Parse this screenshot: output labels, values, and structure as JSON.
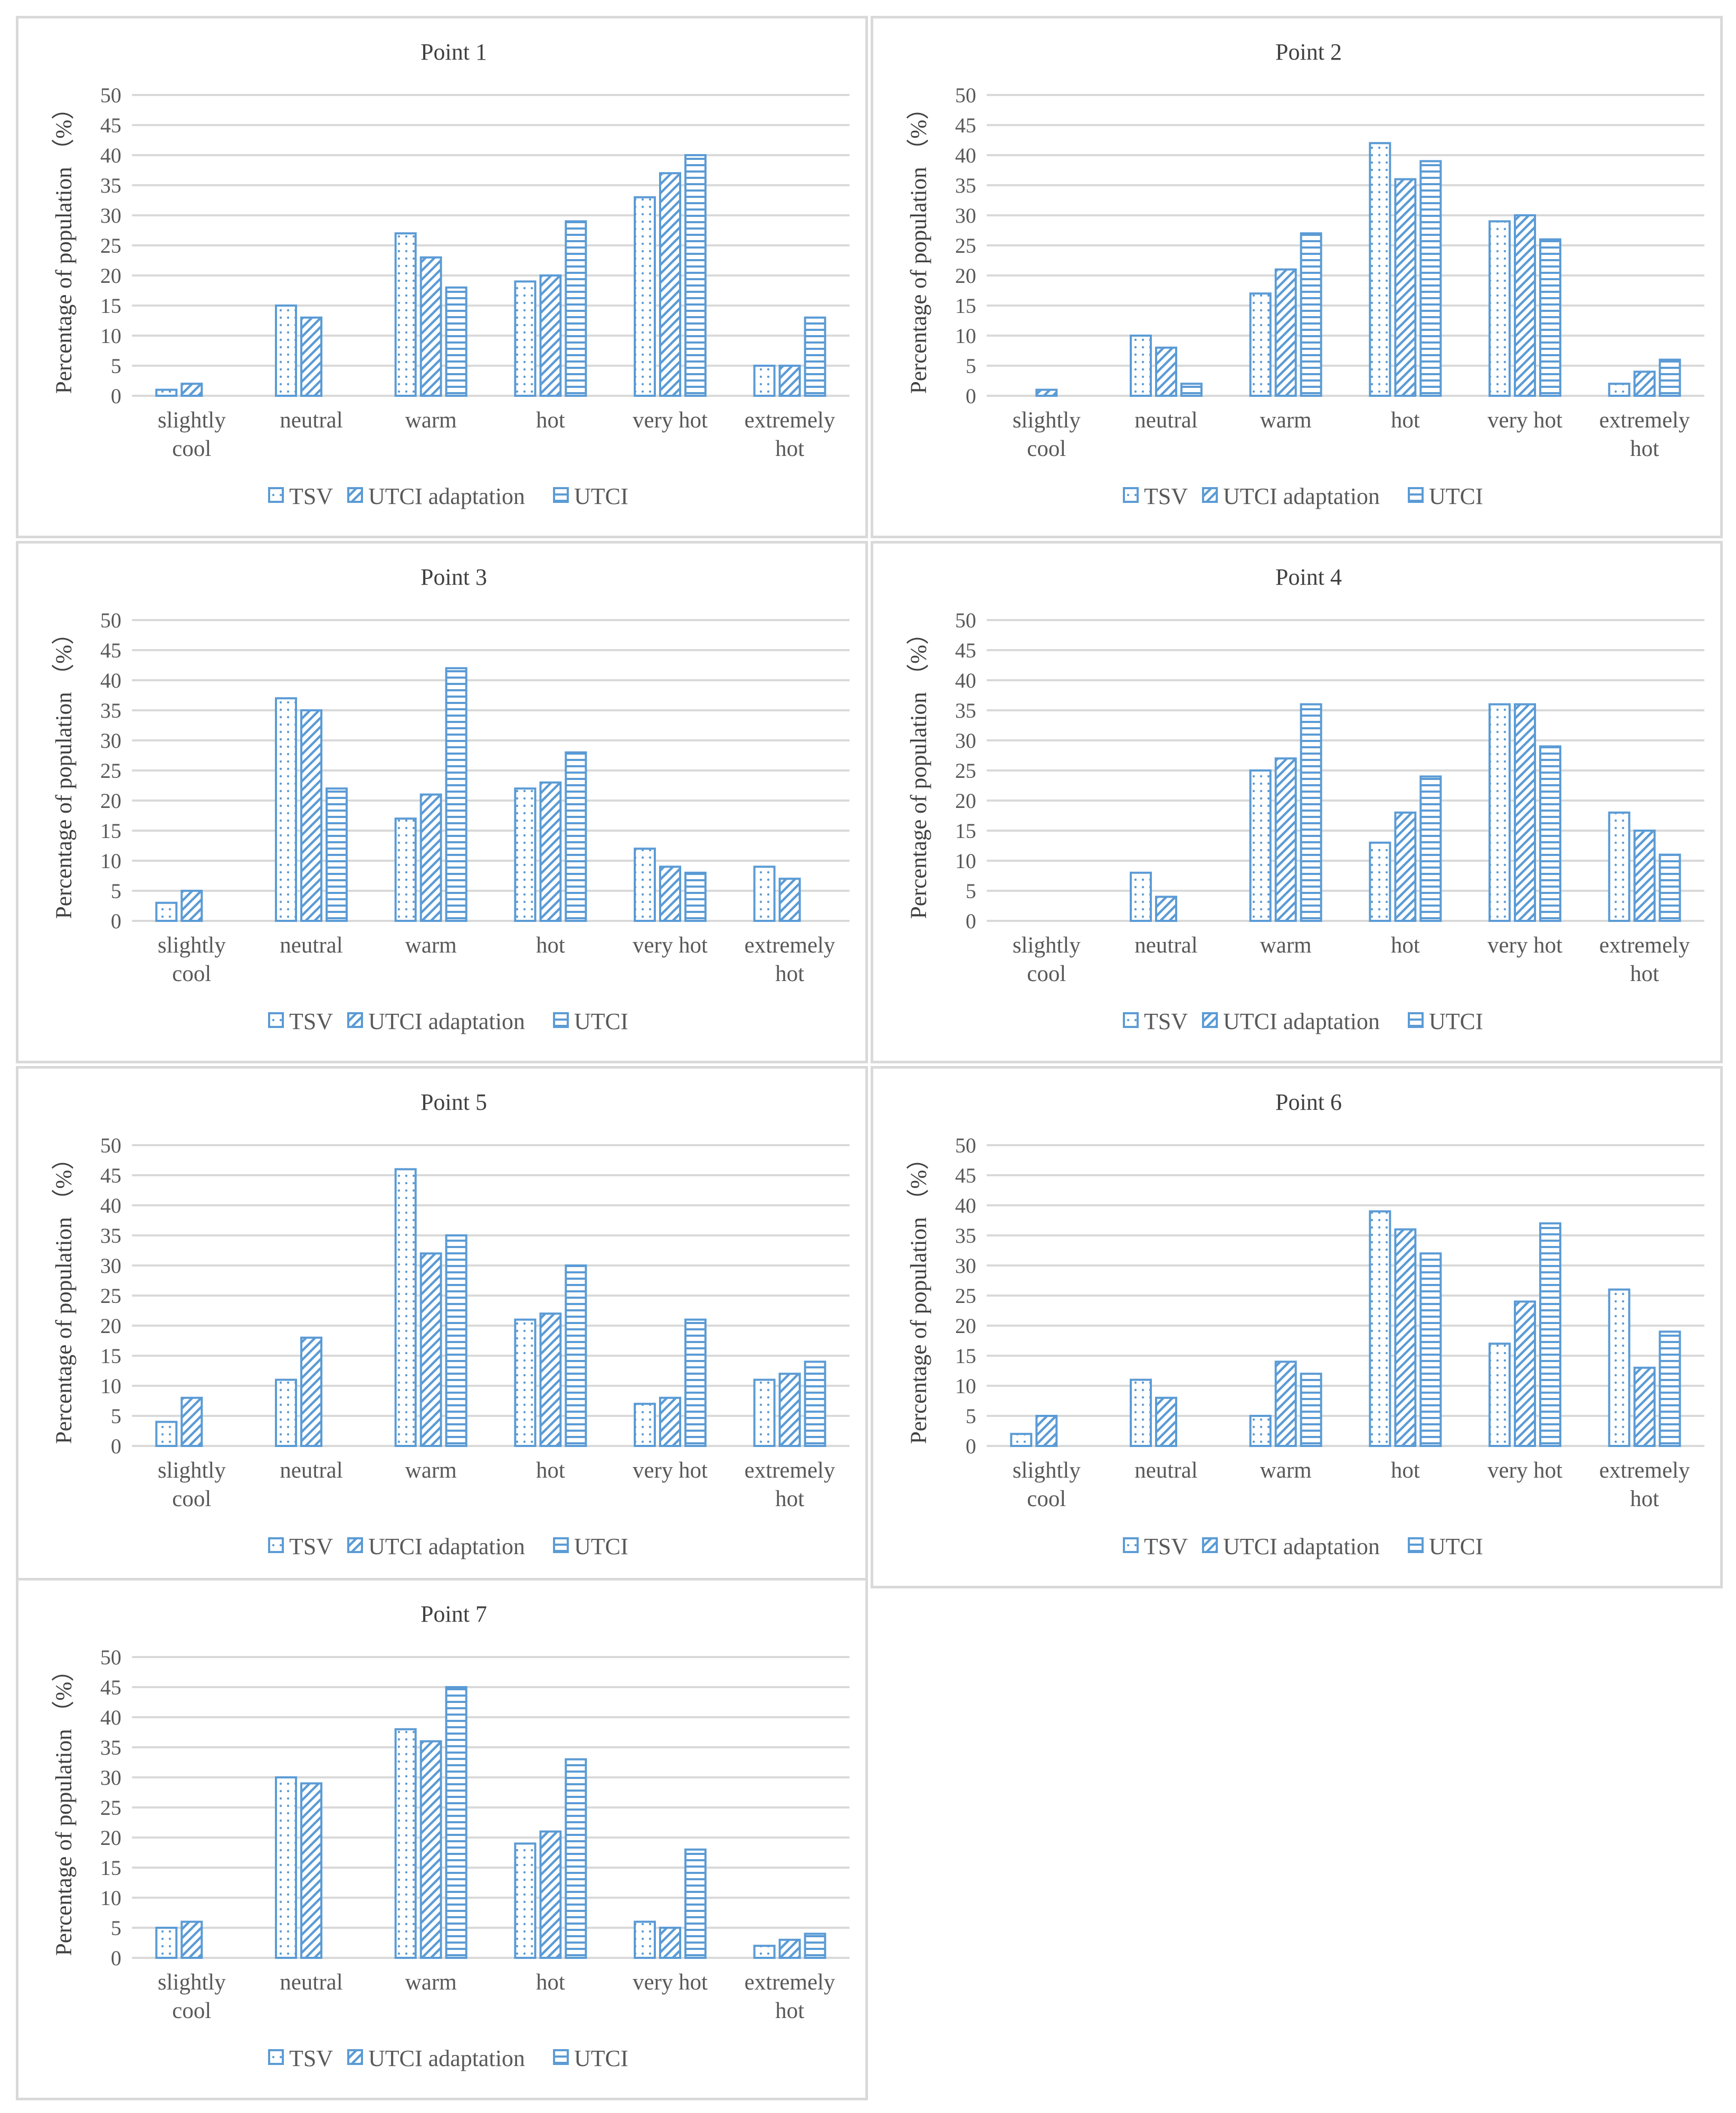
{
  "legend": {
    "tsv": "TSV",
    "utci_adaptation": "UTCI adaptation",
    "utci": "UTCI"
  },
  "axis": {
    "ylabel": "Percentage of population （%）"
  },
  "colors": {
    "bar_stroke": "#5b9bd5",
    "grid": "#d9d9d9",
    "text": "#595959"
  },
  "chart_data": [
    {
      "type": "bar",
      "title": "Point 1",
      "categories": [
        [
          "slightly",
          "cool"
        ],
        [
          "neutral"
        ],
        [
          "warm"
        ],
        [
          "hot"
        ],
        [
          "very hot"
        ],
        [
          "extremely",
          "hot"
        ]
      ],
      "ylabel": "Percentage of population （%）",
      "ylim": [
        0,
        50
      ],
      "yticks": [
        0,
        5,
        10,
        15,
        20,
        25,
        30,
        35,
        40,
        45,
        50
      ],
      "series": [
        {
          "name": "TSV",
          "values": [
            1,
            15,
            27,
            19,
            33,
            5
          ]
        },
        {
          "name": "UTCI adaptation",
          "values": [
            2,
            13,
            23,
            20,
            37,
            5
          ]
        },
        {
          "name": "UTCI",
          "values": [
            0,
            0,
            18,
            29,
            40,
            13
          ]
        }
      ]
    },
    {
      "type": "bar",
      "title": "Point 2",
      "categories": [
        [
          "slightly",
          "cool"
        ],
        [
          "neutral"
        ],
        [
          "warm"
        ],
        [
          "hot"
        ],
        [
          "very hot"
        ],
        [
          "extremely",
          "hot"
        ]
      ],
      "ylabel": "Percentage of population （%）",
      "ylim": [
        0,
        50
      ],
      "yticks": [
        0,
        5,
        10,
        15,
        20,
        25,
        30,
        35,
        40,
        45,
        50
      ],
      "series": [
        {
          "name": "TSV",
          "values": [
            0,
            10,
            17,
            42,
            29,
            2
          ]
        },
        {
          "name": "UTCI adaptation",
          "values": [
            1,
            8,
            21,
            36,
            30,
            4
          ]
        },
        {
          "name": "UTCI",
          "values": [
            0,
            2,
            27,
            39,
            26,
            6
          ]
        }
      ]
    },
    {
      "type": "bar",
      "title": "Point 3",
      "categories": [
        [
          "slightly",
          "cool"
        ],
        [
          "neutral"
        ],
        [
          "warm"
        ],
        [
          "hot"
        ],
        [
          "very hot"
        ],
        [
          "extremely",
          "hot"
        ]
      ],
      "ylabel": "Percentage of population （%）",
      "ylim": [
        0,
        50
      ],
      "yticks": [
        0,
        5,
        10,
        15,
        20,
        25,
        30,
        35,
        40,
        45,
        50
      ],
      "series": [
        {
          "name": "TSV",
          "values": [
            3,
            37,
            17,
            22,
            12,
            9
          ]
        },
        {
          "name": "UTCI adaptation",
          "values": [
            5,
            35,
            21,
            23,
            9,
            7
          ]
        },
        {
          "name": "UTCI",
          "values": [
            0,
            22,
            42,
            28,
            8,
            0
          ]
        }
      ]
    },
    {
      "type": "bar",
      "title": "Point 4",
      "categories": [
        [
          "slightly",
          "cool"
        ],
        [
          "neutral"
        ],
        [
          "warm"
        ],
        [
          "hot"
        ],
        [
          "very hot"
        ],
        [
          "extremely",
          "hot"
        ]
      ],
      "ylabel": "Percentage of population （%）",
      "ylim": [
        0,
        50
      ],
      "yticks": [
        0,
        5,
        10,
        15,
        20,
        25,
        30,
        35,
        40,
        45,
        50
      ],
      "series": [
        {
          "name": "TSV",
          "values": [
            0,
            8,
            25,
            13,
            36,
            18
          ]
        },
        {
          "name": "UTCI adaptation",
          "values": [
            0,
            4,
            27,
            18,
            36,
            15
          ]
        },
        {
          "name": "UTCI",
          "values": [
            0,
            0,
            36,
            24,
            29,
            11
          ]
        }
      ]
    },
    {
      "type": "bar",
      "title": "Point 5",
      "categories": [
        [
          "slightly",
          "cool"
        ],
        [
          "neutral"
        ],
        [
          "warm"
        ],
        [
          "hot"
        ],
        [
          "very hot"
        ],
        [
          "extremely",
          "hot"
        ]
      ],
      "ylabel": "Percentage of population （%）",
      "ylim": [
        0,
        50
      ],
      "yticks": [
        0,
        5,
        10,
        15,
        20,
        25,
        30,
        35,
        40,
        45,
        50
      ],
      "series": [
        {
          "name": "TSV",
          "values": [
            4,
            11,
            46,
            21,
            7,
            11
          ]
        },
        {
          "name": "UTCI adaptation",
          "values": [
            8,
            18,
            32,
            22,
            8,
            12
          ]
        },
        {
          "name": "UTCI",
          "values": [
            0,
            0,
            35,
            30,
            21,
            14
          ]
        }
      ]
    },
    {
      "type": "bar",
      "title": "Point 6",
      "categories": [
        [
          "slightly",
          "cool"
        ],
        [
          "neutral"
        ],
        [
          "warm"
        ],
        [
          "hot"
        ],
        [
          "very hot"
        ],
        [
          "extremely",
          "hot"
        ]
      ],
      "ylabel": "Percentage of population （%）",
      "ylim": [
        0,
        50
      ],
      "yticks": [
        0,
        5,
        10,
        15,
        20,
        25,
        30,
        35,
        40,
        45,
        50
      ],
      "series": [
        {
          "name": "TSV",
          "values": [
            2,
            11,
            5,
            39,
            17,
            26
          ]
        },
        {
          "name": "UTCI adaptation",
          "values": [
            5,
            8,
            14,
            36,
            24,
            13
          ]
        },
        {
          "name": "UTCI",
          "values": [
            0,
            0,
            12,
            32,
            37,
            19
          ]
        }
      ]
    },
    {
      "type": "bar",
      "title": "Point 7",
      "categories": [
        [
          "slightly",
          "cool"
        ],
        [
          "neutral"
        ],
        [
          "warm"
        ],
        [
          "hot"
        ],
        [
          "very hot"
        ],
        [
          "extremely",
          "hot"
        ]
      ],
      "ylabel": "Percentage of population （%）",
      "ylim": [
        0,
        50
      ],
      "yticks": [
        0,
        5,
        10,
        15,
        20,
        25,
        30,
        35,
        40,
        45,
        50
      ],
      "series": [
        {
          "name": "TSV",
          "values": [
            5,
            30,
            38,
            19,
            6,
            2
          ]
        },
        {
          "name": "UTCI adaptation",
          "values": [
            6,
            29,
            36,
            21,
            5,
            3
          ]
        },
        {
          "name": "UTCI",
          "values": [
            0,
            0,
            45,
            33,
            18,
            4
          ]
        }
      ]
    }
  ]
}
